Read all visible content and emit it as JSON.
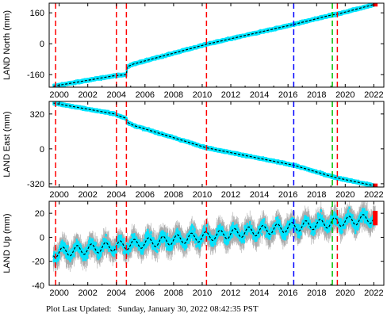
{
  "footer": {
    "label": "Plot Last Updated:",
    "timestamp": "Sunday, January 30, 2022 08:42:35 PST"
  },
  "colors": {
    "data": "#00e5ff",
    "errorbar": "#aaaaaa",
    "model": "#000000",
    "recent": "#ff0000",
    "event_red": "#ff0000",
    "event_blue": "#0000ff",
    "event_green": "#00c000"
  },
  "chart_data": [
    {
      "type": "scatter",
      "ylabel": "LAND North (mm)",
      "xlim": [
        1999.3,
        2022.7
      ],
      "ylim": [
        -225,
        210
      ],
      "yticks": [
        -160,
        0,
        160
      ],
      "xticks": [
        2000,
        2002,
        2004,
        2006,
        2008,
        2010,
        2012,
        2014,
        2016,
        2018,
        2020,
        2022
      ],
      "show_xtick_labels": true,
      "series": [
        {
          "x": [
            1999.6,
            2003.9,
            2004.0,
            2004.7,
            2004.75,
            2005.2,
            2010.3,
            2016.4,
            2019.1,
            2019.4,
            2022.1
          ],
          "y": [
            -220,
            -165,
            -165,
            -160,
            -120,
            -105,
            -3,
            100,
            150,
            152,
            205
          ]
        }
      ],
      "events": [
        {
          "x": 1999.75,
          "color": "red"
        },
        {
          "x": 2004.0,
          "color": "red"
        },
        {
          "x": 2004.7,
          "color": "red"
        },
        {
          "x": 2010.3,
          "color": "red"
        },
        {
          "x": 2016.4,
          "color": "blue"
        },
        {
          "x": 2019.1,
          "color": "green"
        },
        {
          "x": 2019.45,
          "color": "red"
        }
      ]
    },
    {
      "type": "scatter",
      "ylabel": "LAND East (mm)",
      "xlim": [
        1999.3,
        2022.7
      ],
      "ylim": [
        -350,
        435
      ],
      "yticks": [
        -320,
        0,
        320
      ],
      "xticks": [
        2000,
        2002,
        2004,
        2006,
        2008,
        2010,
        2012,
        2014,
        2016,
        2018,
        2020,
        2022
      ],
      "show_xtick_labels": true,
      "series": [
        {
          "x": [
            1999.6,
            2003.9,
            2004.0,
            2004.7,
            2004.75,
            2005.2,
            2010.3,
            2016.4,
            2019.1,
            2019.4,
            2022.1
          ],
          "y": [
            420,
            320,
            310,
            280,
            245,
            215,
            10,
            -150,
            -255,
            -265,
            -340
          ]
        }
      ],
      "events": [
        {
          "x": 1999.75,
          "color": "red"
        },
        {
          "x": 2004.0,
          "color": "red"
        },
        {
          "x": 2004.7,
          "color": "red"
        },
        {
          "x": 2010.3,
          "color": "red"
        },
        {
          "x": 2016.4,
          "color": "blue"
        },
        {
          "x": 2019.1,
          "color": "green"
        },
        {
          "x": 2019.45,
          "color": "red"
        }
      ]
    },
    {
      "type": "scatter",
      "ylabel": "LAND Up (mm)",
      "xlim": [
        1999.3,
        2022.7
      ],
      "ylim": [
        -40,
        30
      ],
      "yticks": [
        -40,
        -20,
        0,
        20
      ],
      "xticks": [
        2000,
        2002,
        2004,
        2006,
        2008,
        2010,
        2012,
        2014,
        2016,
        2018,
        2020,
        2022
      ],
      "show_xtick_labels": true,
      "trend": {
        "start": [
          1999.6,
          -13
        ],
        "end": [
          2022.1,
          16
        ],
        "seasonal_amplitude": 4
      },
      "events": [
        {
          "x": 1999.75,
          "color": "red"
        },
        {
          "x": 2004.0,
          "color": "red"
        },
        {
          "x": 2004.7,
          "color": "red"
        },
        {
          "x": 2010.3,
          "color": "red"
        },
        {
          "x": 2016.4,
          "color": "blue"
        },
        {
          "x": 2019.1,
          "color": "green"
        },
        {
          "x": 2019.45,
          "color": "red"
        }
      ]
    }
  ]
}
